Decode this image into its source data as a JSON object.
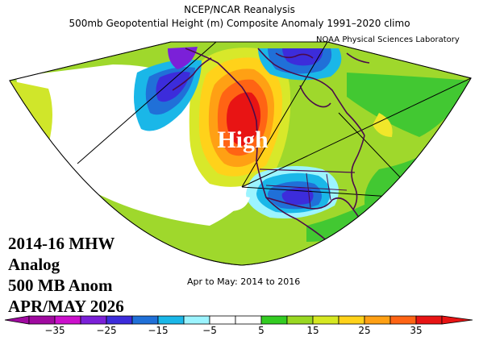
{
  "header": {
    "title_line1": "NCEP/NCAR Reanalysis",
    "title_line2": "500mb Geopotential Height (m) Composite Anomaly 1991–2020 climo",
    "credit": "NOAA Physical Sciences Laboratory"
  },
  "map": {
    "feature_label": "High",
    "period": "Apr to May: 2014 to 2016",
    "colors": {
      "land_outline": "#4b0b4b",
      "grid_line": "#000000"
    }
  },
  "annotation": {
    "line1": "2014-16 MHW",
    "line2": "Analog",
    "line3": "500 MB Anom",
    "line4": "APR/MAY 2026"
  },
  "colorbar": {
    "unit": "m",
    "range": [
      -35,
      35
    ],
    "tick_labels": [
      "−35",
      "−25",
      "−15",
      "−5",
      "5",
      "15",
      "25",
      "35"
    ],
    "tick_values": [
      -35,
      -25,
      -15,
      -5,
      5,
      15,
      25,
      35
    ],
    "colors": [
      "#a00aa0",
      "#cc10cc",
      "#7b20d8",
      "#3c2cdb",
      "#2070d8",
      "#1ab7e8",
      "#9cf4ff",
      "#ffffff",
      "#ffffff",
      "#33cc22",
      "#99d822",
      "#d6e822",
      "#ffd21a",
      "#ffa014",
      "#ff6414",
      "#e81414"
    ]
  }
}
